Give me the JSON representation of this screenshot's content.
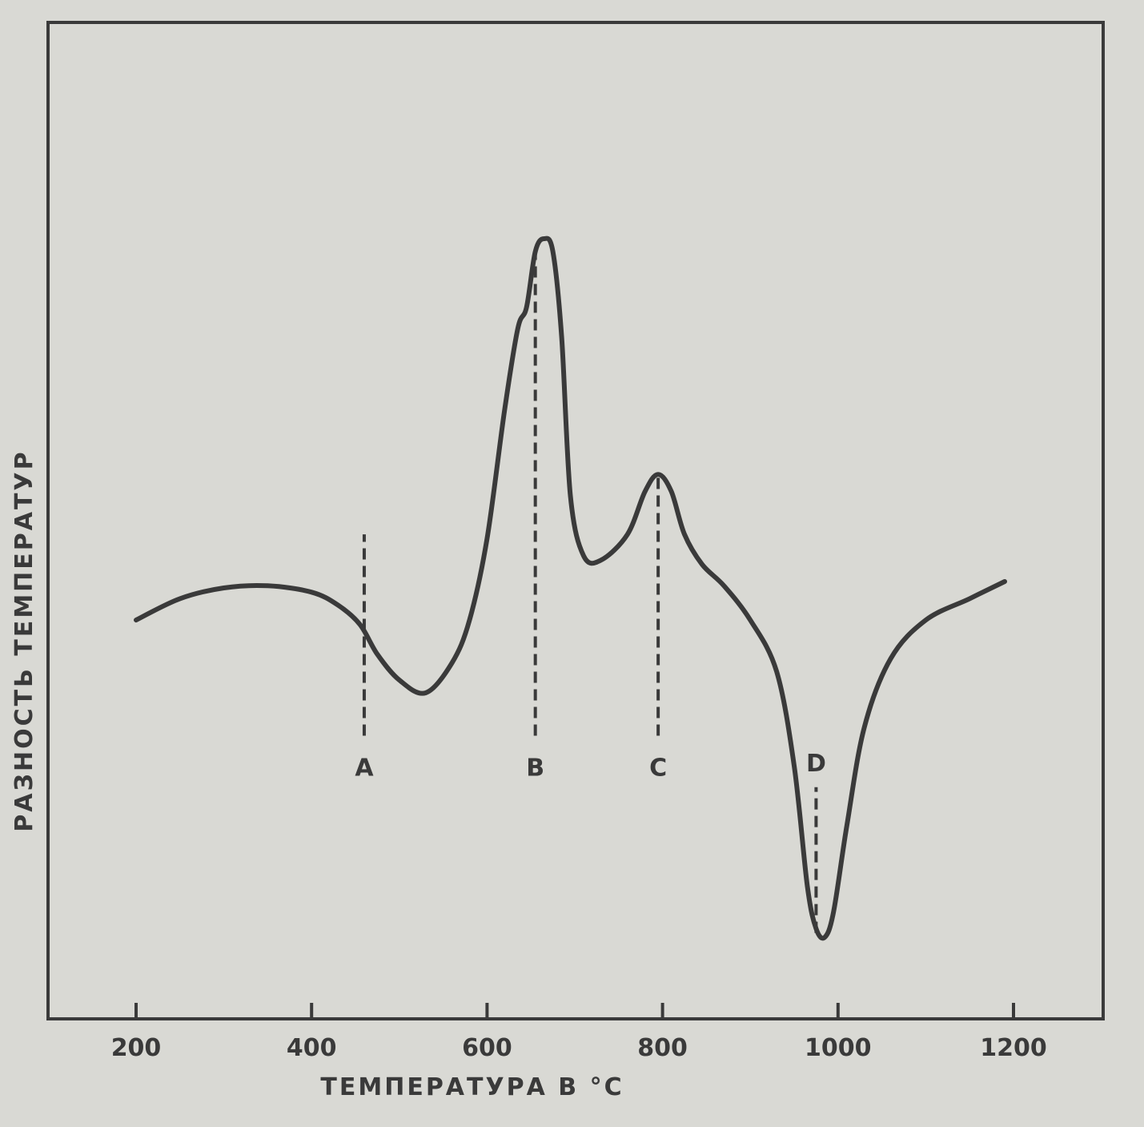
{
  "chart_data": {
    "type": "line",
    "title": "",
    "xlabel": "ТЕМПЕРАТУРА В °С",
    "ylabel": "РАЗНОСТЬ ТЕМПЕРАТУР",
    "xlim": [
      150,
      1250
    ],
    "ylim": [
      -100,
      100
    ],
    "x_ticks": [
      200,
      400,
      600,
      800,
      1000,
      1200
    ],
    "x_tick_labels": [
      "200",
      "400",
      "600",
      "800",
      "1000",
      "1200"
    ],
    "grid": false,
    "colors": {
      "line": "#3a3a3a",
      "background": "#d9d9d4"
    },
    "series": [
      {
        "x": [
          200,
          250,
          300,
          350,
          400,
          430,
          455,
          475,
          500,
          530,
          560,
          580,
          600,
          620,
          635,
          645,
          655,
          665,
          675,
          685,
          695,
          710,
          730,
          760,
          780,
          795,
          810,
          825,
          845,
          870,
          900,
          930,
          950,
          965,
          975,
          985,
          995,
          1010,
          1030,
          1060,
          1100,
          1150,
          1190
        ],
        "y": [
          -6,
          -1,
          1.5,
          2,
          0.5,
          -2.5,
          -7,
          -14,
          -20,
          -23,
          -16,
          -6,
          13,
          43,
          62,
          67,
          80,
          83,
          80,
          60,
          23,
          9,
          8,
          14,
          24,
          28,
          24,
          14,
          7,
          2,
          -6,
          -18,
          -40,
          -68,
          -78,
          -80,
          -74,
          -54,
          -31,
          -15,
          -6,
          -1,
          3
        ]
      }
    ],
    "markers": [
      {
        "label": "A",
        "x": 460,
        "y_from": -33,
        "y_to": 14
      },
      {
        "label": "B",
        "x": 655,
        "y_from": -33,
        "y_to": 81
      },
      {
        "label": "C",
        "x": 795,
        "y_from": -33,
        "y_to": 28
      },
      {
        "label": "D",
        "x": 975,
        "y_from": -79,
        "y_to": -45
      }
    ]
  }
}
